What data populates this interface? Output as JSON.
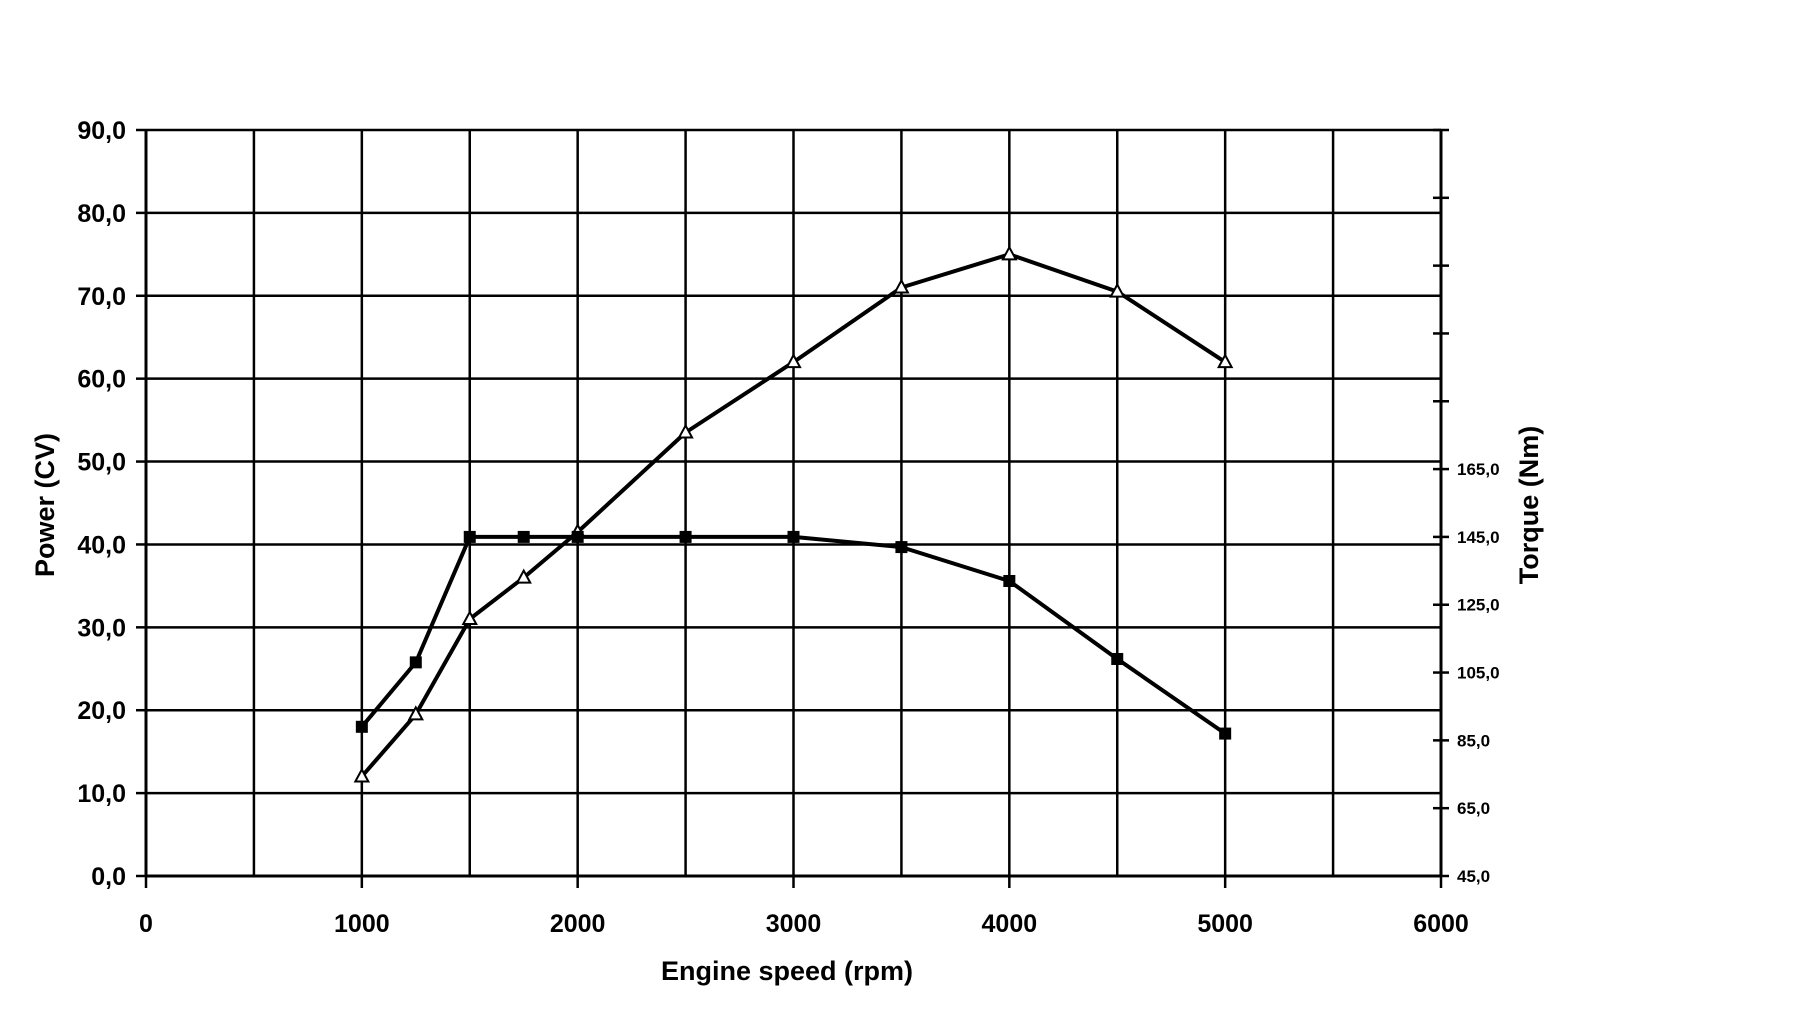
{
  "chart_data": {
    "type": "line",
    "title": "",
    "xlabel": "Engine speed (rpm)",
    "ylabel": "Power (CV)",
    "y2label": "Torque (Nm)",
    "xlim": [
      0,
      6000
    ],
    "ylim": [
      0,
      90
    ],
    "y2lim": [
      45,
      265
    ],
    "grid": true,
    "legend": "none",
    "x_ticks": [
      "0",
      "1000",
      "2000",
      "3000",
      "4000",
      "5000",
      "6000"
    ],
    "y_ticks": [
      "0,0",
      "10,0",
      "20,0",
      "30,0",
      "40,0",
      "50,0",
      "60,0",
      "70,0",
      "80,0",
      "90,0"
    ],
    "y2_ticks": [
      "45,0",
      "65,0",
      "85,0",
      "105,0",
      "125,0",
      "145,0",
      "165,0"
    ],
    "series": [
      {
        "marker": "triangle",
        "axis": "left",
        "x": [
          1000,
          1250,
          1500,
          1750,
          2000,
          2500,
          3000,
          3500,
          4000,
          4500,
          5000
        ],
        "values": [
          12.0,
          19.5,
          31.0,
          36.0,
          41.5,
          53.5,
          62.0,
          71.0,
          75.0,
          70.5,
          62.0
        ]
      },
      {
        "marker": "square",
        "axis": "right",
        "x": [
          1000,
          1250,
          1500,
          1750,
          2000,
          2500,
          3000,
          3500,
          4000,
          4500,
          5000
        ],
        "values": [
          89,
          108,
          145,
          145,
          145,
          145,
          145,
          142,
          132,
          109,
          87
        ]
      }
    ]
  }
}
